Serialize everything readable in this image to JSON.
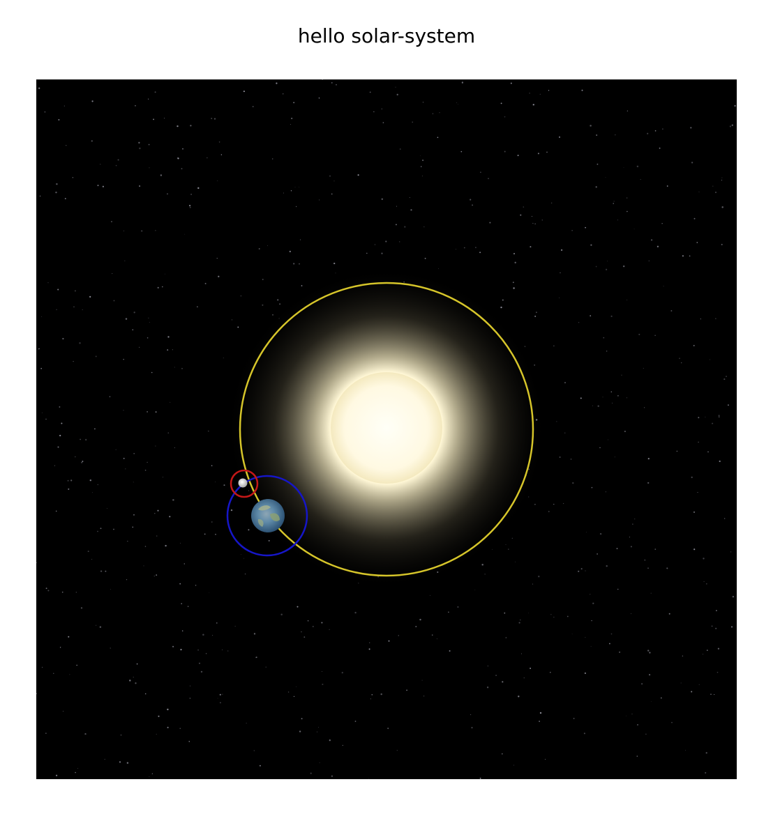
{
  "page": {
    "title": "hello solar-system"
  },
  "scene": {
    "background_color": "#000000",
    "star_color": "#b9b9c6",
    "sun": {
      "name": "sun",
      "core_color": "#fffbe6",
      "glow_color": "#d8cfa0"
    },
    "orbits": {
      "sun_orbit_color": "#d6c52a",
      "earth_orbit_color": "#1616c8",
      "moon_orbit_color": "#c41818"
    },
    "earth": {
      "name": "earth",
      "ocean_color": "#3f6f9a",
      "land_color": "#8aa07a"
    },
    "moon": {
      "name": "moon",
      "color": "#e6e6e6"
    }
  }
}
